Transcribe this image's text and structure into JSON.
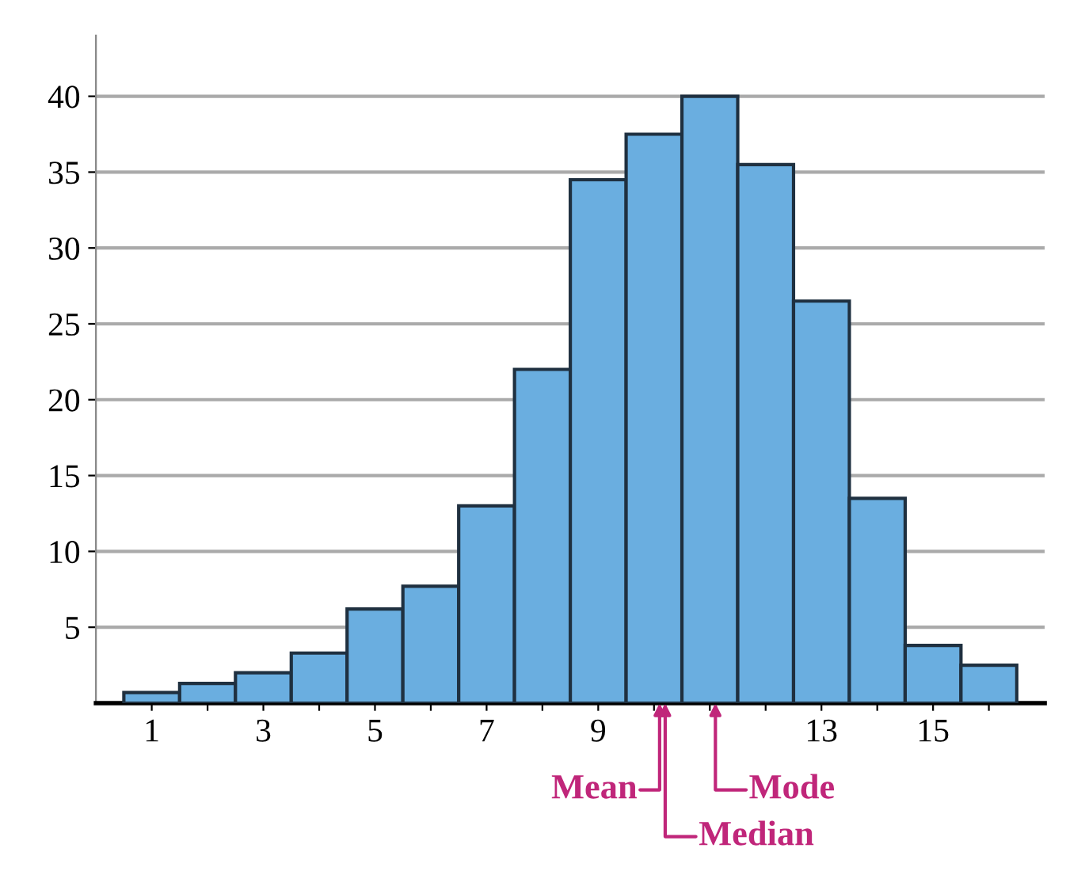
{
  "chart_data": {
    "type": "histogram",
    "bins": [
      0.5,
      1.5,
      2.5,
      3.5,
      4.5,
      5.5,
      6.5,
      7.5,
      8.5,
      9.5,
      10.5,
      11.5,
      12.5,
      13.5,
      14.5,
      15.5,
      16.5
    ],
    "values": [
      0.7,
      1.3,
      2,
      3.3,
      6.2,
      7.7,
      13,
      22,
      34.5,
      37.5,
      40,
      35.5,
      26.5,
      13.5,
      3.8,
      2.5
    ],
    "color": "#6aaee0",
    "xlim": [
      0,
      17
    ],
    "ylim": [
      0,
      44
    ],
    "xticks": [
      1,
      {
        "value": 2,
        "label": null
      },
      3,
      {
        "value": 4,
        "label": null
      },
      5,
      {
        "value": 6,
        "label": null
      },
      7,
      {
        "value": 8,
        "label": null
      },
      9,
      {
        "value": 10,
        "label": null
      },
      {
        "value": 11,
        "label": null
      },
      {
        "value": 12,
        "label": null
      },
      13,
      {
        "value": 14,
        "label": null
      },
      15,
      {
        "value": 16,
        "label": null
      }
    ],
    "yticks": [
      5,
      10,
      15,
      20,
      25,
      30,
      35,
      40
    ],
    "grid": "y",
    "annotations": [
      {
        "text": "Mean",
        "x": 10.1,
        "y": 0
      },
      {
        "text": "Median",
        "x": 10.2,
        "y": 0
      },
      {
        "text": "Mode",
        "x": 11.1,
        "y": 0
      }
    ]
  }
}
